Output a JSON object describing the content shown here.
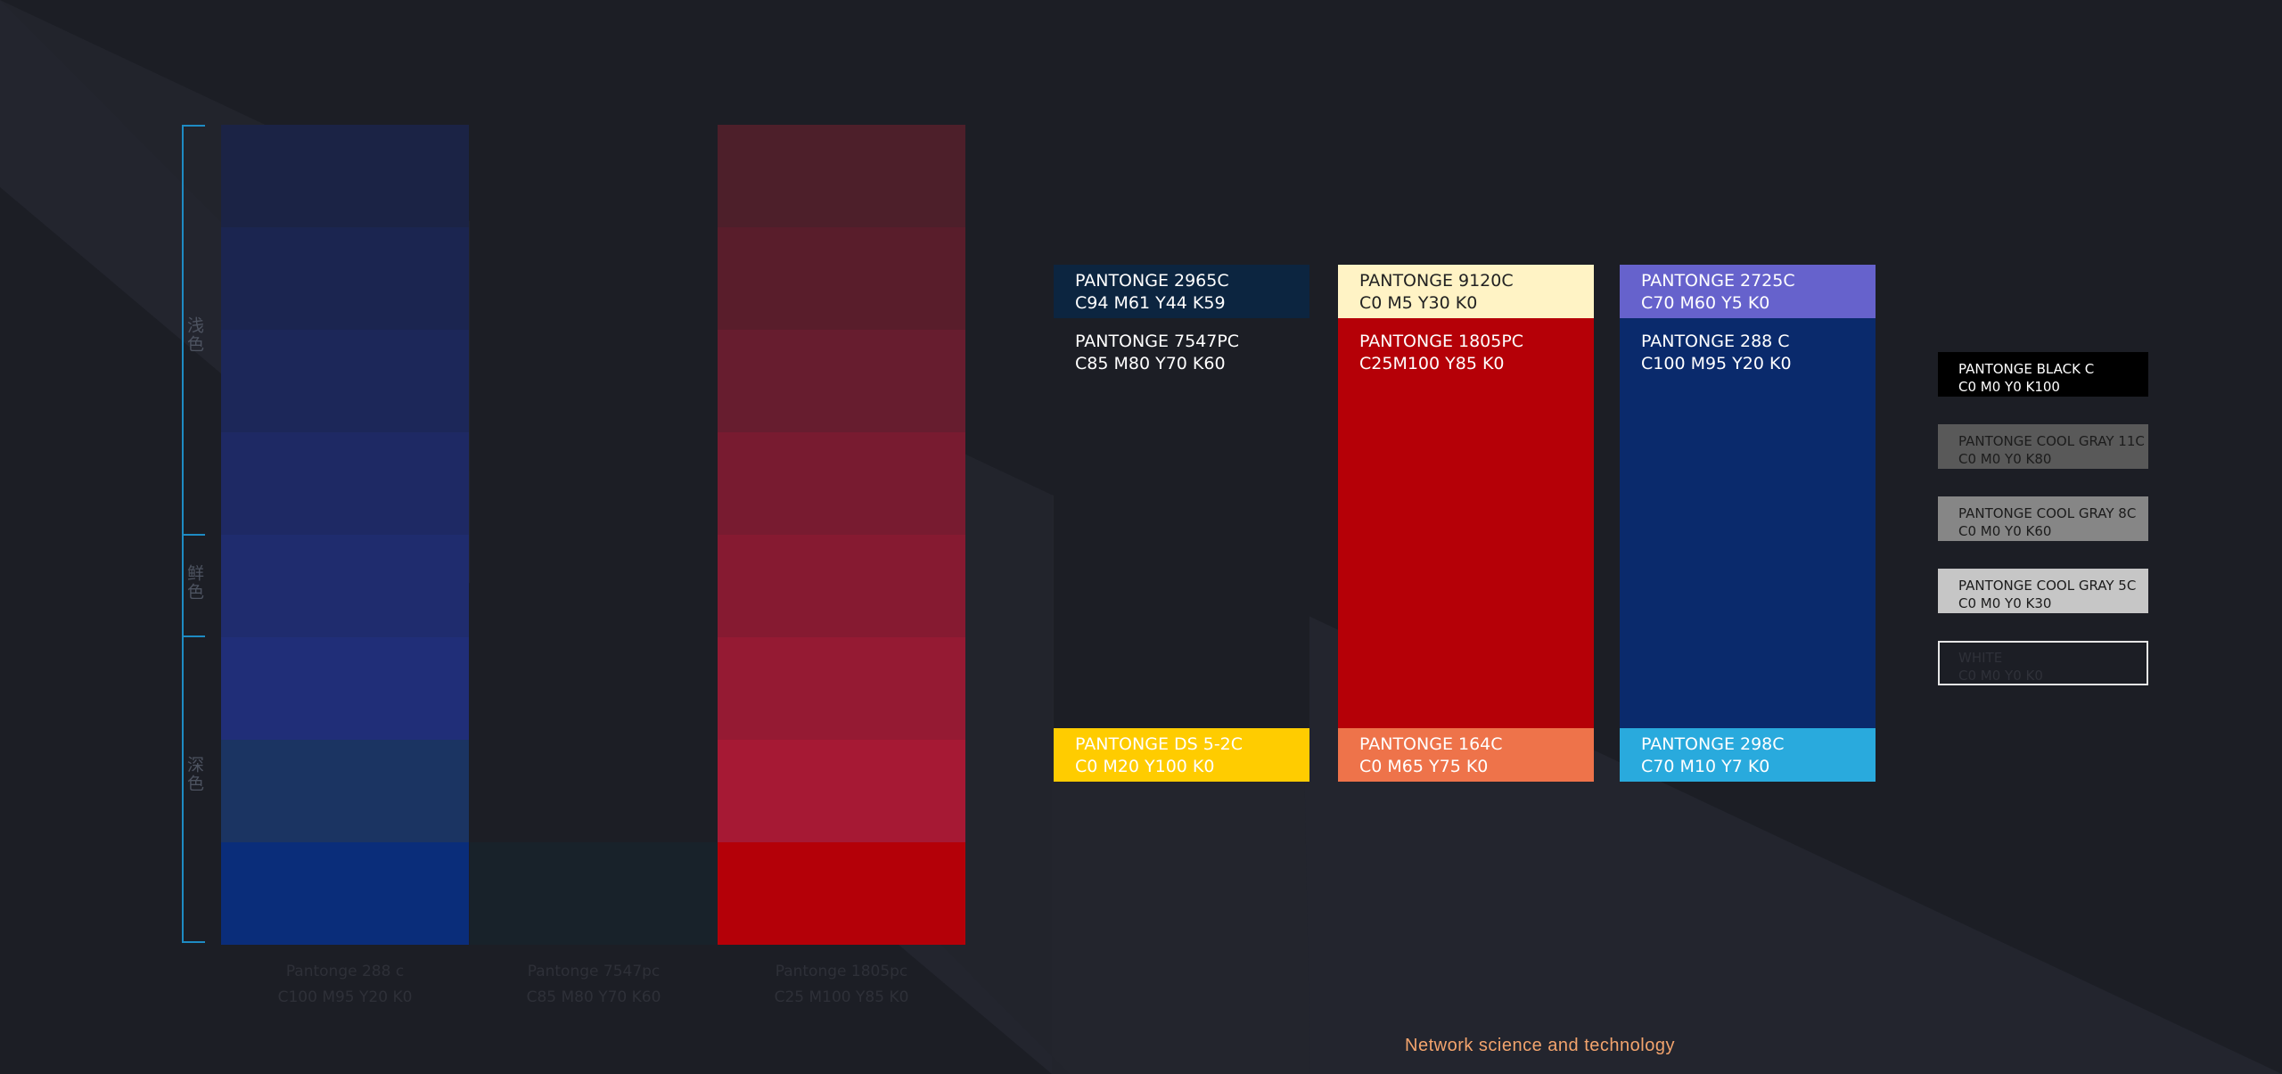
{
  "scale_labels": {
    "light": "浅色",
    "vivid": "鲜色",
    "dark": "深色"
  },
  "columns": [
    {
      "caption_line1": "Pantonge 288 c",
      "caption_line2": "C100 M95 Y20 K0",
      "steps": [
        "#1b2345",
        "#1b2550",
        "#1c2759",
        "#1e2964",
        "#1f2c6e",
        "#202e78",
        "#1b3462",
        "#0a2d7a"
      ]
    },
    {
      "caption_line1": "Pantonge 7547pc",
      "caption_line2": "C85 M80 Y70 K60",
      "steps": [
        "#1c1e25",
        "#1c1e25",
        "#1c1e25",
        "#1c1e25",
        "#1c1e25",
        "#1c1e25",
        "#1c1e25",
        "#18222a"
      ]
    },
    {
      "caption_line1": "Pantonge 1805pc",
      "caption_line2": "C25 M100 Y85 K0",
      "steps": [
        "#4d1f2a",
        "#591d2b",
        "#671d2f",
        "#781b30",
        "#861a31",
        "#951a33",
        "#a61934",
        "#b40008"
      ]
    }
  ],
  "cards": [
    {
      "top_name": "PANTONGE 2965C",
      "top_code": "C94 M61 Y44 K59",
      "top_bg": "#0c2540",
      "top_fg": "#ffffff",
      "main_name": "PANTONGE 7547PC",
      "main_code": "C85 M80 Y70 K60",
      "main_bg": "#1c1e25",
      "main_fg": "#ffffff",
      "bottom_name": "PANTONGE DS 5-2C",
      "bottom_code": "C0 M20 Y100 K0",
      "bottom_bg": "#ffcc00",
      "bottom_fg": "#ffffff"
    },
    {
      "top_name": "PANTONGE 9120C",
      "top_code": "C0 M5 Y30 K0",
      "top_bg": "#fff3c5",
      "top_fg": "#222222",
      "main_name": "PANTONGE 1805PC",
      "main_code": "C25M100 Y85 K0",
      "main_bg": "#b50007",
      "main_fg": "#ffffff",
      "bottom_name": "PANTONGE 164C",
      "bottom_code": "C0 M65 Y75 K0",
      "bottom_bg": "#ee734a",
      "bottom_fg": "#ffffff"
    },
    {
      "top_name": "PANTONGE 2725C",
      "top_code": "C70 M60 Y5 K0",
      "top_bg": "#6662cc",
      "top_fg": "#ffffff",
      "main_name": "PANTONGE 288 C",
      "main_code": "C100 M95 Y20 K0",
      "main_bg": "#0a2a6c",
      "main_fg": "#ffffff",
      "bottom_name": "PANTONGE 298C",
      "bottom_code": "C70 M10 Y7 K0",
      "bottom_bg": "#29aadd",
      "bottom_fg": "#ffffff"
    }
  ],
  "neutrals": [
    {
      "name": "PANTONGE BLACK C",
      "code": "C0 M0 Y0 K100",
      "bg": "#000000",
      "fg": "#ffffff",
      "border": "#000000"
    },
    {
      "name": "PANTONGE COOL GRAY 11C",
      "code": "C0 M0 Y0 K80",
      "bg": "#595959",
      "fg": "#1c1c1c",
      "border": "#595959"
    },
    {
      "name": "PANTONGE COOL GRAY 8C",
      "code": "C0 M0 Y0 K60",
      "bg": "#868686",
      "fg": "#1c1c1c",
      "border": "#868686"
    },
    {
      "name": "PANTONGE COOL GRAY 5C",
      "code": "C0 M0 Y0 K30",
      "bg": "#c6c6c6",
      "fg": "#1c1c1c",
      "border": "#c6c6c6"
    },
    {
      "name": "WHITE",
      "code": "C0 M0 Y0 K0",
      "bg": "#1c1e25",
      "fg": "#2f3139",
      "border": "#e6e6e6"
    }
  ],
  "footer": {
    "tagline": "Network science and technology"
  }
}
